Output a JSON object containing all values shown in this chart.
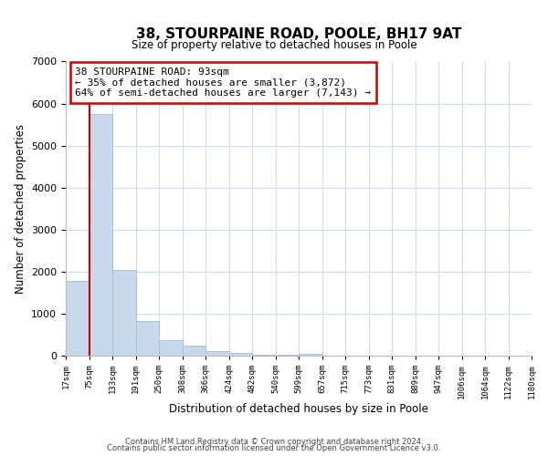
{
  "title": "38, STOURPAINE ROAD, POOLE, BH17 9AT",
  "subtitle": "Size of property relative to detached houses in Poole",
  "xlabel": "Distribution of detached houses by size in Poole",
  "ylabel": "Number of detached properties",
  "bar_values": [
    1780,
    5750,
    2050,
    830,
    370,
    230,
    110,
    60,
    30,
    20,
    50,
    0,
    0,
    0,
    0,
    0,
    0,
    0,
    0,
    0
  ],
  "bin_labels": [
    "17sqm",
    "75sqm",
    "133sqm",
    "191sqm",
    "250sqm",
    "308sqm",
    "366sqm",
    "424sqm",
    "482sqm",
    "540sqm",
    "599sqm",
    "657sqm",
    "715sqm",
    "773sqm",
    "831sqm",
    "889sqm",
    "947sqm",
    "1006sqm",
    "1064sqm",
    "1122sqm",
    "1180sqm"
  ],
  "bar_color": "#c8d9ec",
  "bar_edge_color": "#a8c0dc",
  "property_line_x": 1,
  "property_line_color": "#cc0000",
  "annotation_title": "38 STOURPAINE ROAD: 93sqm",
  "annotation_line2": "← 35% of detached houses are smaller (3,872)",
  "annotation_line3": "64% of semi-detached houses are larger (7,143) →",
  "annotation_box_color": "white",
  "annotation_box_edge_color": "#cc0000",
  "ylim": [
    0,
    7000
  ],
  "yticks": [
    0,
    1000,
    2000,
    3000,
    4000,
    5000,
    6000,
    7000
  ],
  "footer_line1": "Contains HM Land Registry data © Crown copyright and database right 2024.",
  "footer_line2": "Contains public sector information licensed under the Open Government Licence v3.0.",
  "background_color": "white",
  "grid_color": "#ccddee"
}
